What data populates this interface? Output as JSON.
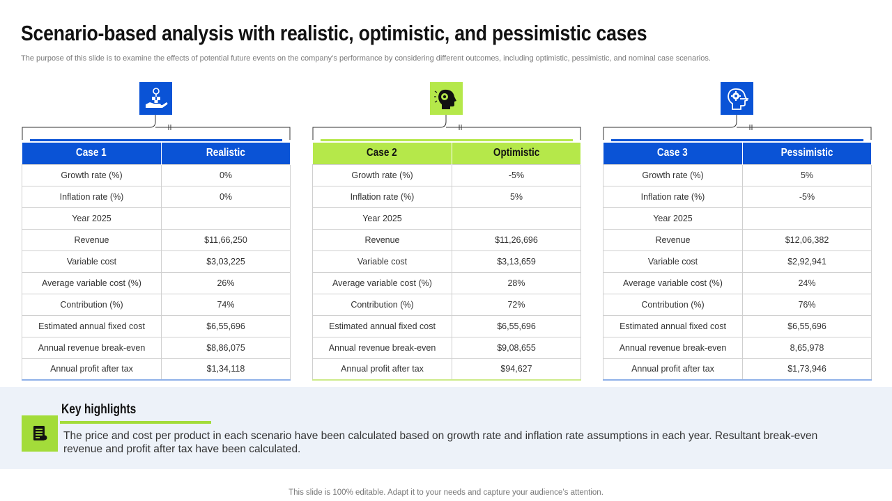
{
  "title": "Scenario-based analysis with realistic, optimistic, and pessimistic cases",
  "subtitle": "The purpose of this slide is to examine the effects of potential future events on the company’s performance by considering different outcomes, including optimistic, pessimistic, and nominal case scenarios.",
  "colors": {
    "blue": "#0a53d6",
    "green": "#b5e84a",
    "highlight_bg": "#edf2f9"
  },
  "cases": [
    {
      "header_case": "Case 1",
      "header_type": "Realistic",
      "icon": "hand-money-icon",
      "rows": [
        {
          "label": "Growth rate (%)",
          "value": "0%"
        },
        {
          "label": "Inflation rate (%)",
          "value": "0%"
        },
        {
          "label": "Year 2025",
          "value": ""
        },
        {
          "label": "Revenue",
          "value": "$11,66,250"
        },
        {
          "label": "Variable cost",
          "value": "$3,03,225"
        },
        {
          "label": "Average variable cost (%)",
          "value": "26%"
        },
        {
          "label": "Contribution (%)",
          "value": "74%"
        },
        {
          "label": "Estimated annual fixed cost",
          "value": "$6,55,696"
        },
        {
          "label": "Annual revenue break-even",
          "value": "$8,86,075"
        },
        {
          "label": "Annual profit after tax",
          "value": "$1,34,118"
        }
      ]
    },
    {
      "header_case": "Case 2",
      "header_type": "Optimistic",
      "icon": "head-idea-icon",
      "rows": [
        {
          "label": "Growth rate (%)",
          "value": "-5%"
        },
        {
          "label": "Inflation rate (%)",
          "value": "5%"
        },
        {
          "label": "Year 2025",
          "value": ""
        },
        {
          "label": "Revenue",
          "value": "$11,26,696"
        },
        {
          "label": "Variable cost",
          "value": "$3,13,659"
        },
        {
          "label": "Average variable cost (%)",
          "value": "28%"
        },
        {
          "label": "Contribution (%)",
          "value": "72%"
        },
        {
          "label": "Estimated annual fixed cost",
          "value": "$6,55,696"
        },
        {
          "label": "Annual revenue break-even",
          "value": "$9,08,655"
        },
        {
          "label": "Annual profit after tax",
          "value": "$94,627"
        }
      ]
    },
    {
      "header_case": "Case 3",
      "header_type": "Pessimistic",
      "icon": "head-gear-icon",
      "rows": [
        {
          "label": "Growth rate (%)",
          "value": "5%"
        },
        {
          "label": "Inflation rate (%)",
          "value": "-5%"
        },
        {
          "label": "Year 2025",
          "value": ""
        },
        {
          "label": "Revenue",
          "value": "$12,06,382"
        },
        {
          "label": "Variable cost",
          "value": "$2,92,941"
        },
        {
          "label": "Average variable cost (%)",
          "value": "24%"
        },
        {
          "label": "Contribution (%)",
          "value": "76%"
        },
        {
          "label": "Estimated annual fixed cost",
          "value": "$6,55,696"
        },
        {
          "label": "Annual revenue break-even",
          "value": "8,65,978"
        },
        {
          "label": "Annual profit after tax",
          "value": "$1,73,946"
        }
      ]
    }
  ],
  "highlights": {
    "title": "Key highlights",
    "text": "The price and cost per product in each scenario have been calculated based on growth rate and inflation rate assumptions in each year. Resultant break-even revenue and profit after tax have been calculated.",
    "icon": "document-list-icon"
  },
  "footer": "This slide is 100% editable. Adapt it to your needs and capture your audience’s attention."
}
